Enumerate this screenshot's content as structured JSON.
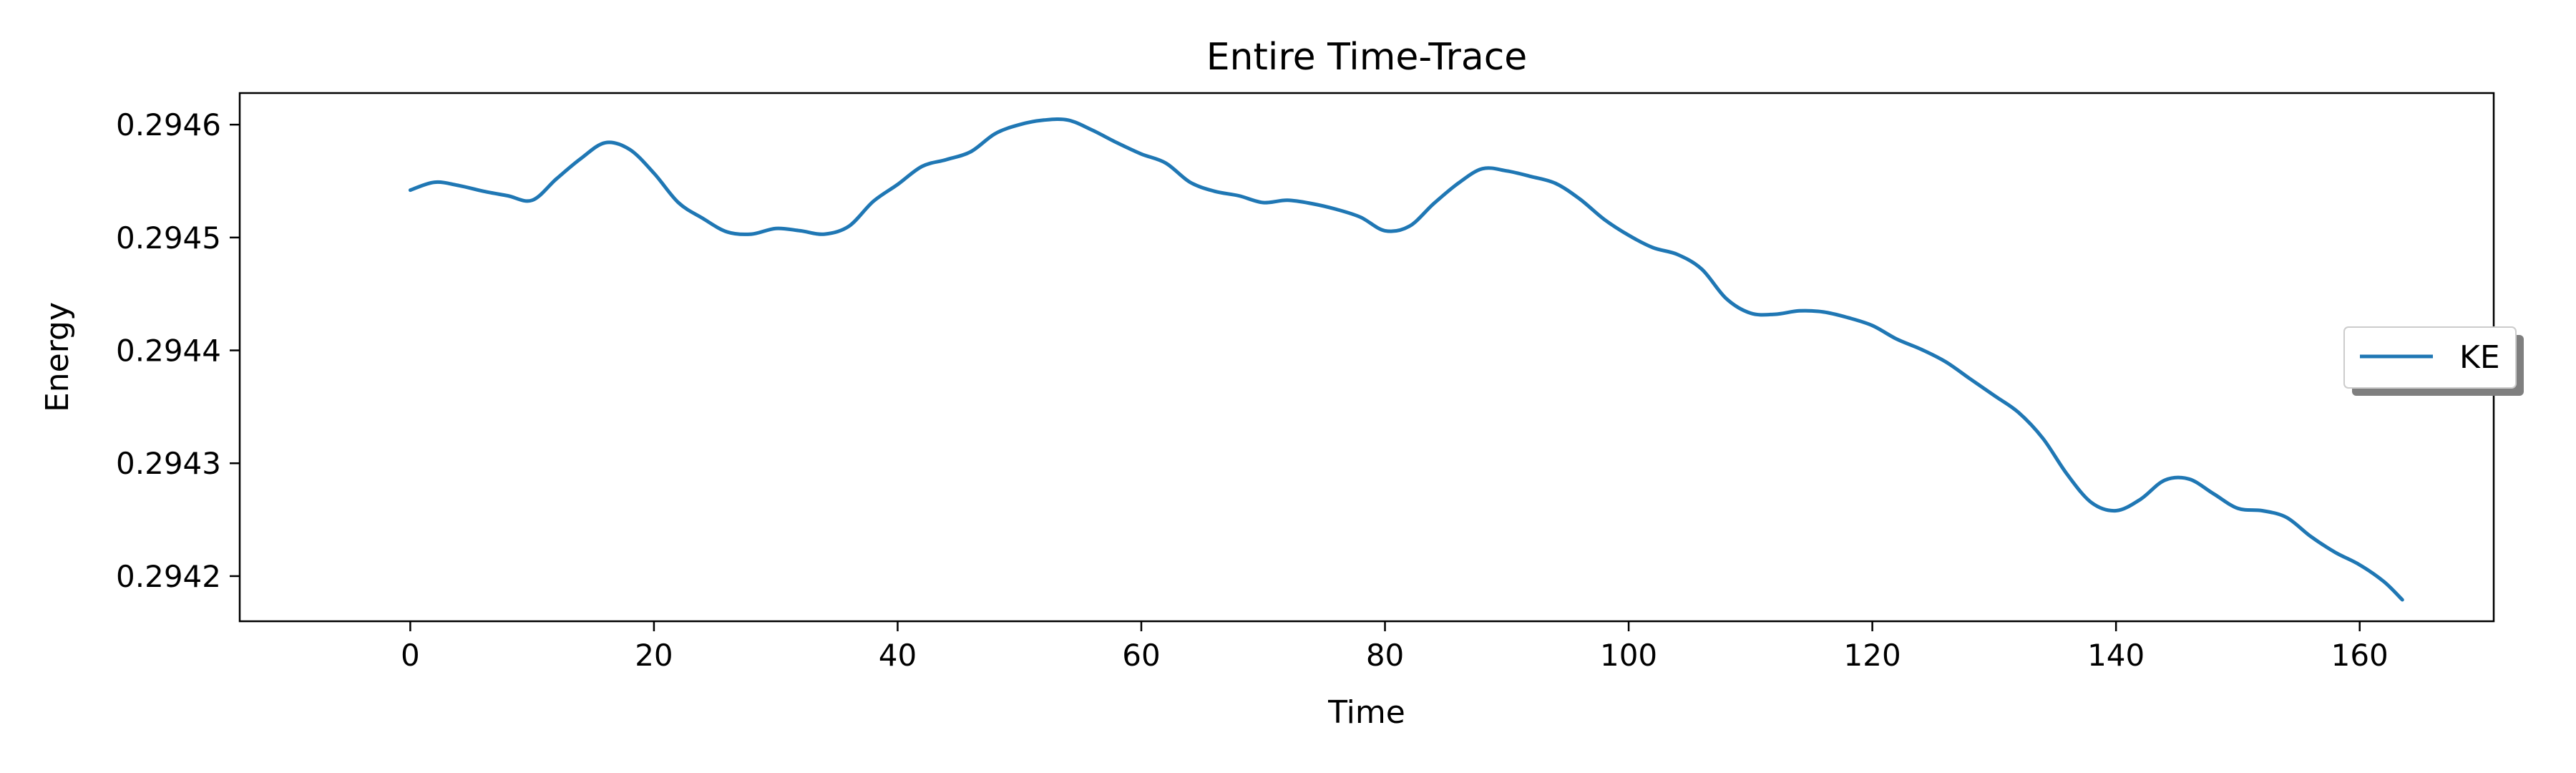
{
  "chart_data": {
    "type": "line",
    "title": "Entire Time-Trace",
    "xlabel": "Time",
    "ylabel": "Energy",
    "xlim": [
      -14,
      171
    ],
    "ylim": [
      0.29416,
      0.294628
    ],
    "xticks": [
      0,
      20,
      40,
      60,
      80,
      100,
      120,
      140,
      160
    ],
    "xtick_labels": [
      "0",
      "20",
      "40",
      "60",
      "80",
      "100",
      "120",
      "140",
      "160"
    ],
    "yticks": [
      0.2942,
      0.2943,
      0.2944,
      0.2945,
      0.2946
    ],
    "ytick_labels": [
      "0.2942",
      "0.2943",
      "0.2944",
      "0.2945",
      "0.2946"
    ],
    "grid": false,
    "legend_position": "center-right",
    "series": [
      {
        "name": "KE",
        "color": "#1f77b4",
        "x": [
          0,
          2,
          4,
          6,
          8,
          10,
          12,
          14,
          16,
          18,
          20,
          22,
          24,
          26,
          28,
          30,
          32,
          34,
          36,
          38,
          40,
          42,
          44,
          46,
          48,
          50,
          52,
          54,
          56,
          58,
          60,
          62,
          64,
          66,
          68,
          70,
          72,
          74,
          76,
          78,
          80,
          82,
          84,
          86,
          88,
          90,
          92,
          94,
          96,
          98,
          100,
          102,
          104,
          106,
          108,
          110,
          112,
          114,
          116,
          118,
          120,
          122,
          124,
          126,
          128,
          130,
          132,
          134,
          136,
          138,
          140,
          142,
          144,
          146,
          148,
          150,
          152,
          154,
          156,
          158,
          160,
          162,
          163.5
        ],
        "y": [
          0.294542,
          0.294549,
          0.294546,
          0.294541,
          0.294537,
          0.294533,
          0.294552,
          0.29457,
          0.294584,
          0.294578,
          0.294557,
          0.294531,
          0.294517,
          0.294505,
          0.294503,
          0.294508,
          0.294506,
          0.294503,
          0.29451,
          0.294532,
          0.294547,
          0.294563,
          0.294569,
          0.294576,
          0.294592,
          0.2946,
          0.294604,
          0.294604,
          0.294595,
          0.294584,
          0.294574,
          0.294566,
          0.294549,
          0.294541,
          0.294537,
          0.294531,
          0.294533,
          0.29453,
          0.294525,
          0.294518,
          0.294506,
          0.29451,
          0.29453,
          0.294548,
          0.294561,
          0.294559,
          0.294554,
          0.294548,
          0.294534,
          0.294516,
          0.294502,
          0.294491,
          0.294485,
          0.294472,
          0.294446,
          0.294433,
          0.294432,
          0.294435,
          0.294434,
          0.294429,
          0.294422,
          0.29441,
          0.294401,
          0.29439,
          0.294375,
          0.29436,
          0.294345,
          0.294322,
          0.29429,
          0.294265,
          0.294258,
          0.294268,
          0.294285,
          0.294286,
          0.294273,
          0.29426,
          0.294258,
          0.294252,
          0.294235,
          0.294221,
          0.29421,
          0.294195,
          0.294179
        ]
      }
    ]
  }
}
